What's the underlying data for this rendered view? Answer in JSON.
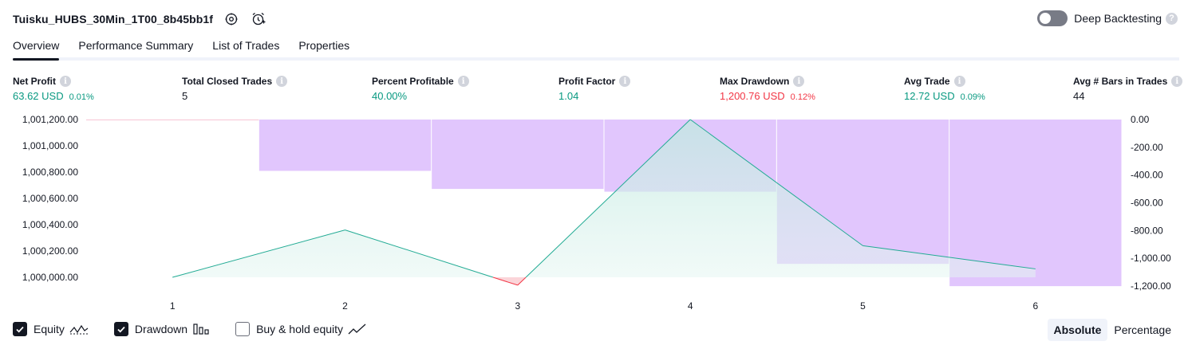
{
  "header": {
    "title": "Tuisku_HUBS_30Min_1T00_8b45bb1f",
    "deep_backtesting_label": "Deep Backtesting",
    "deep_backtesting_on": false
  },
  "tabs": [
    {
      "label": "Overview",
      "active": true
    },
    {
      "label": "Performance Summary",
      "active": false
    },
    {
      "label": "List of Trades",
      "active": false
    },
    {
      "label": "Properties",
      "active": false
    }
  ],
  "metrics": {
    "net_profit": {
      "label": "Net Profit",
      "value": "63.62 USD",
      "pct": "0.01%"
    },
    "total_closed_trades": {
      "label": "Total Closed Trades",
      "value": "5"
    },
    "percent_profitable": {
      "label": "Percent Profitable",
      "value": "40.00%"
    },
    "profit_factor": {
      "label": "Profit Factor",
      "value": "1.04"
    },
    "max_drawdown": {
      "label": "Max Drawdown",
      "value": "1,200.76 USD",
      "pct": "0.12%"
    },
    "avg_trade": {
      "label": "Avg Trade",
      "value": "12.72 USD",
      "pct": "0.09%"
    },
    "avg_bars": {
      "label": "Avg # Bars in Trades",
      "value": "44"
    }
  },
  "colors": {
    "positive": "#089981",
    "negative": "#f23645",
    "equity_line": "#22ab94",
    "drawdown_fill": "#e1c6fd",
    "equity_fill": "#d7f1ec"
  },
  "chart_data": {
    "type": "line",
    "x": [
      1,
      2,
      3,
      4,
      5,
      6
    ],
    "equity_series": {
      "name": "Equity",
      "points": [
        [
          1,
          1000000
        ],
        [
          2,
          1000360
        ],
        [
          3,
          999940
        ],
        [
          4,
          1001200
        ],
        [
          5,
          1000240
        ],
        [
          6,
          1000064
        ]
      ]
    },
    "drawdown_series": {
      "name": "Drawdown",
      "bars": [
        {
          "from": 0.5,
          "to": 1.5,
          "value": 0
        },
        {
          "from": 1.5,
          "to": 2.5,
          "value": -370
        },
        {
          "from": 2.5,
          "to": 3.5,
          "value": -500
        },
        {
          "from": 3.5,
          "to": 4.5,
          "value": -520
        },
        {
          "from": 4.5,
          "to": 5.5,
          "value": -1040
        },
        {
          "from": 5.5,
          "to": 6.5,
          "value": -1200.76
        }
      ]
    },
    "left_axis": {
      "ticks": [
        1000000,
        1000200,
        1000400,
        1000600,
        1000800,
        1001000,
        1001200
      ],
      "tick_labels": [
        "1,000,000.00",
        "1,000,200.00",
        "1,000,400.00",
        "1,000,600.00",
        "1,000,800.00",
        "1,001,000.00",
        "1,001,200.00"
      ],
      "range": [
        1000000,
        1001200
      ]
    },
    "right_axis": {
      "ticks": [
        0,
        -200,
        -400,
        -600,
        -800,
        -1000,
        -1200
      ],
      "tick_labels": [
        "0.00",
        "-200.00",
        "-400.00",
        "-600.00",
        "-800.00",
        "-1,000.00",
        "-1,200.00"
      ],
      "range": [
        -1200,
        0
      ]
    },
    "x_tick_labels": [
      "1",
      "2",
      "3",
      "4",
      "5",
      "6"
    ],
    "x_range": [
      0.5,
      6.5
    ]
  },
  "legend": [
    {
      "label": "Equity",
      "checked": true,
      "icon": "equity-line-icon"
    },
    {
      "label": "Drawdown",
      "checked": true,
      "icon": "drawdown-bars-icon"
    },
    {
      "label": "Buy & hold equity",
      "checked": false,
      "icon": "buy-hold-line-icon"
    }
  ],
  "view_mode": {
    "options": [
      "Absolute",
      "Percentage"
    ],
    "selected": "Absolute"
  }
}
